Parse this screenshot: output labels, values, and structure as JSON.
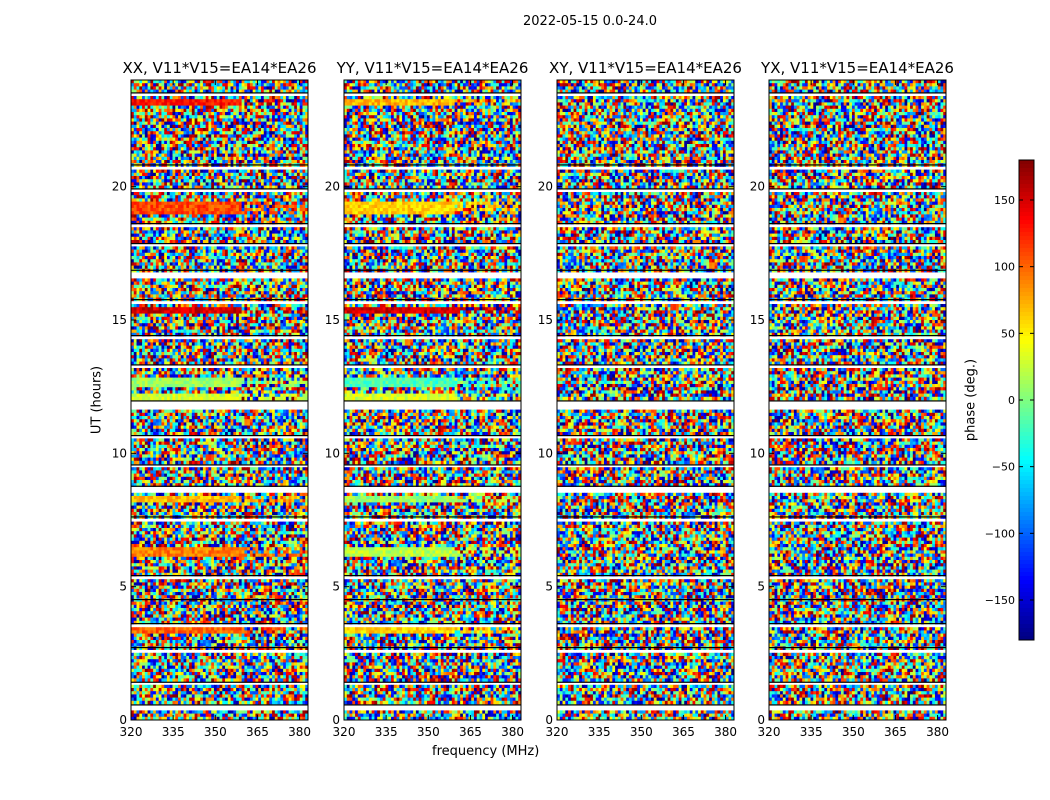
{
  "figure": {
    "suptitle": "2022-05-15 0.0-24.0",
    "ylabel": "UT (hours)",
    "xlabel": "frequency (MHz)"
  },
  "chart_data": {
    "type": "heatmap",
    "colormap": "jet",
    "x_range": [
      320,
      383
    ],
    "xticks": [
      320,
      335,
      350,
      365,
      380
    ],
    "xtick_labels": [
      "320",
      "335",
      "350",
      "365",
      "380"
    ],
    "y_range": [
      0,
      24
    ],
    "yticks": [
      0,
      5,
      10,
      15,
      20
    ],
    "ytick_labels": [
      "0",
      "5",
      "10",
      "15",
      "20"
    ],
    "panels": [
      {
        "title": "XX, V11*V15=EA14*EA26",
        "polarization": "XX"
      },
      {
        "title": "YY, V11*V15=EA14*EA26",
        "polarization": "YY"
      },
      {
        "title": "XY, V11*V15=EA14*EA26",
        "polarization": "XY"
      },
      {
        "title": "YX, V11*V15=EA14*EA26",
        "polarization": "YX"
      }
    ],
    "colorbar": {
      "label": "phase (deg.)",
      "range": [
        -180,
        180
      ],
      "ticks": [
        -150,
        -100,
        -50,
        0,
        50,
        100,
        150
      ],
      "tick_labels": [
        "−150",
        "−100",
        "−50",
        "0",
        "50",
        "100",
        "150"
      ]
    },
    "flagged_gaps_hours": [
      [
        0.4,
        0.55
      ],
      [
        1.3,
        1.4
      ],
      [
        2.55,
        2.7
      ],
      [
        3.5,
        3.6
      ],
      [
        4.4,
        4.5
      ],
      [
        5.3,
        5.4
      ],
      [
        7.5,
        7.6
      ],
      [
        8.55,
        8.75
      ],
      [
        9.45,
        9.55
      ],
      [
        10.55,
        10.65
      ],
      [
        11.6,
        11.95
      ],
      [
        13.2,
        13.3
      ],
      [
        14.3,
        14.4
      ],
      [
        15.55,
        15.75
      ],
      [
        16.6,
        16.85
      ],
      [
        17.75,
        17.85
      ],
      [
        18.5,
        18.6
      ],
      [
        19.8,
        19.9
      ],
      [
        20.7,
        20.8
      ],
      [
        23.35,
        23.5
      ]
    ],
    "coherent_bands": [
      {
        "panels": [
          0
        ],
        "start": 3.2,
        "end": 3.55,
        "phase": 100
      },
      {
        "panels": [
          1
        ],
        "start": 3.2,
        "end": 3.55,
        "phase": 60
      },
      {
        "panels": [
          0
        ],
        "start": 6.1,
        "end": 6.45,
        "phase": 90
      },
      {
        "panels": [
          1
        ],
        "start": 6.1,
        "end": 6.45,
        "phase": 20
      },
      {
        "panels": [
          0
        ],
        "start": 8.2,
        "end": 8.4,
        "phase": 70
      },
      {
        "panels": [
          1
        ],
        "start": 8.2,
        "end": 8.4,
        "phase": 10
      },
      {
        "panels": [
          0,
          1
        ],
        "start": 11.9,
        "end": 12.2,
        "phase": 30
      },
      {
        "panels": [
          0
        ],
        "start": 12.5,
        "end": 12.8,
        "phase": 10
      },
      {
        "panels": [
          1
        ],
        "start": 12.5,
        "end": 12.8,
        "phase": -20
      },
      {
        "panels": [
          0,
          1
        ],
        "start": 15.3,
        "end": 15.5,
        "phase": 150
      },
      {
        "panels": [
          0
        ],
        "start": 19.0,
        "end": 19.5,
        "phase": 110
      },
      {
        "panels": [
          1
        ],
        "start": 19.0,
        "end": 19.5,
        "phase": 60
      },
      {
        "panels": [
          0
        ],
        "start": 23.0,
        "end": 23.3,
        "phase": 130
      },
      {
        "panels": [
          1
        ],
        "start": 23.0,
        "end": 23.3,
        "phase": 70
      }
    ]
  }
}
